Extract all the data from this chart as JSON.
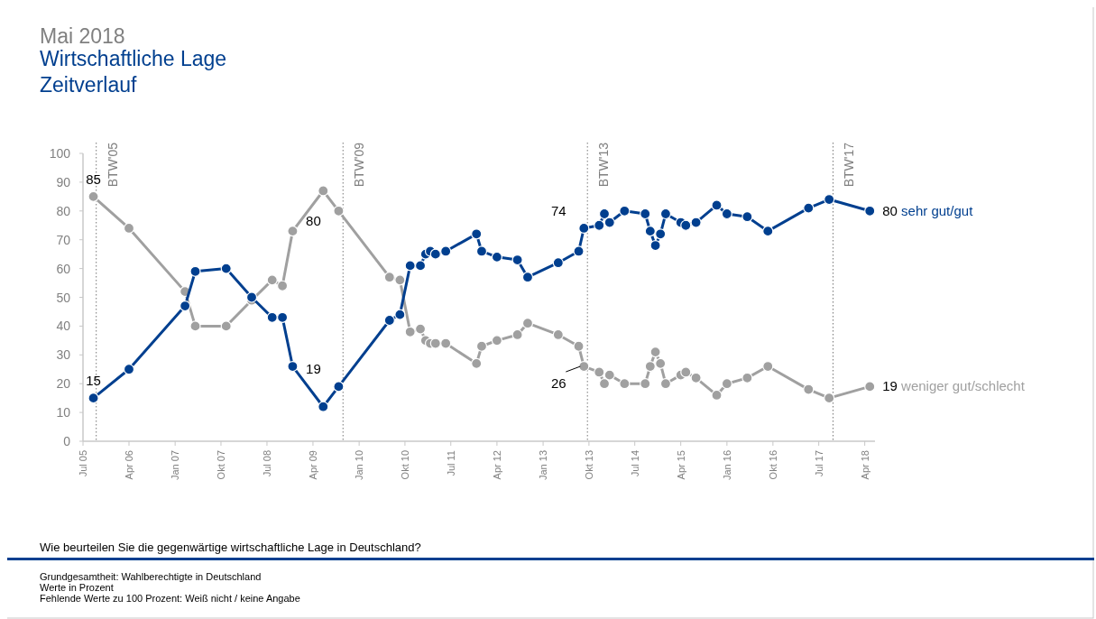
{
  "chart_data": {
    "type": "line",
    "title": "Mai 2018",
    "subtitle": "Wirtschaftliche Lage",
    "annotations": [
      "Zeitverlauf",
      "Wie beurteilen Sie die gegenwärtige wirtschaftliche Lage in Deutschland?",
      "Grundgesamtheit: Wahlberechtigte in Deutschland",
      "Werte in Prozent",
      "Fehlende Werte zu 100 Prozent: Weiß nicht / keine Angabe"
    ],
    "x": [
      "2005-09",
      "2006-04",
      "2007-03",
      "2007-05",
      "2007-11",
      "2008-04",
      "2008-08",
      "2008-10",
      "2008-12",
      "2009-06",
      "2009-09",
      "2010-07",
      "2010-09",
      "2010-11",
      "2011-01",
      "2011-02",
      "2011-03",
      "2011-04",
      "2011-06",
      "2011-12",
      "2012-01",
      "2012-04",
      "2012-08",
      "2012-10",
      "2013-04",
      "2013-08",
      "2013-09",
      "2013-12",
      "2014-01",
      "2014-02",
      "2014-05",
      "2014-09",
      "2014-10",
      "2014-11",
      "2014-12",
      "2015-01",
      "2015-04",
      "2015-05",
      "2015-07",
      "2015-11",
      "2016-01",
      "2016-05",
      "2016-09",
      "2017-05",
      "2017-09",
      "2018-05"
    ],
    "series": [
      {
        "name": "sehr gut/gut",
        "color": "#003f8f",
        "values": [
          15,
          25,
          47,
          59,
          60,
          50,
          43,
          43,
          26,
          12,
          19,
          42,
          44,
          61,
          61,
          65,
          66,
          65,
          66,
          72,
          66,
          64,
          63,
          57,
          62,
          66,
          74,
          75,
          79,
          76,
          80,
          79,
          73,
          68,
          72,
          79,
          76,
          75,
          76,
          82,
          79,
          78,
          73,
          81,
          84,
          80
        ],
        "value_labels": [
          "15",
          null,
          null,
          null,
          null,
          null,
          null,
          null,
          null,
          null,
          "19",
          null,
          null,
          null,
          null,
          null,
          null,
          null,
          null,
          null,
          null,
          null,
          null,
          null,
          null,
          null,
          "74",
          null,
          null,
          null,
          null,
          null,
          null,
          null,
          null,
          null,
          null,
          null,
          null,
          null,
          null,
          null,
          null,
          null,
          null,
          "80"
        ]
      },
      {
        "name": "weniger gut/schlecht",
        "color": "#a0a0a0",
        "values": [
          85,
          74,
          52,
          40,
          40,
          49,
          56,
          54,
          73,
          87,
          80,
          57,
          56,
          38,
          39,
          35,
          34,
          34,
          34,
          27,
          33,
          35,
          37,
          41,
          37,
          33,
          26,
          24,
          20,
          23,
          20,
          20,
          26,
          31,
          27,
          20,
          23,
          24,
          22,
          16,
          20,
          22,
          26,
          18,
          15,
          19
        ],
        "value_labels": [
          "85",
          null,
          null,
          null,
          null,
          null,
          null,
          null,
          null,
          null,
          "80",
          null,
          null,
          null,
          null,
          null,
          null,
          null,
          null,
          null,
          null,
          null,
          null,
          null,
          null,
          null,
          "26",
          null,
          null,
          null,
          null,
          null,
          null,
          null,
          null,
          null,
          null,
          null,
          null,
          null,
          null,
          null,
          null,
          null,
          null,
          "19"
        ]
      }
    ],
    "xlim": [
      "2005-07",
      "2018-06"
    ],
    "xticks": [
      {
        "value": "2005-07",
        "label": "Jul 05"
      },
      {
        "value": "2006-04",
        "label": "Apr 06"
      },
      {
        "value": "2007-01",
        "label": "Jan 07"
      },
      {
        "value": "2007-10",
        "label": "Okt 07"
      },
      {
        "value": "2008-07",
        "label": "Jul 08"
      },
      {
        "value": "2009-04",
        "label": "Apr 09"
      },
      {
        "value": "2010-01",
        "label": "Jan 10"
      },
      {
        "value": "2010-10",
        "label": "Okt 10"
      },
      {
        "value": "2011-07",
        "label": "Jul 11"
      },
      {
        "value": "2012-04",
        "label": "Apr 12"
      },
      {
        "value": "2013-01",
        "label": "Jan 13"
      },
      {
        "value": "2013-10",
        "label": "Okt 13"
      },
      {
        "value": "2014-07",
        "label": "Jul 14"
      },
      {
        "value": "2015-04",
        "label": "Apr 15"
      },
      {
        "value": "2016-01",
        "label": "Jan 16"
      },
      {
        "value": "2016-10",
        "label": "Okt 16"
      },
      {
        "value": "2017-07",
        "label": "Jul 17"
      },
      {
        "value": "2018-04",
        "label": "Apr 18"
      }
    ],
    "ylim": [
      0,
      100
    ],
    "yticks": [
      0,
      10,
      20,
      30,
      40,
      50,
      60,
      70,
      80,
      90,
      100
    ],
    "ref_lines": [
      {
        "axis": "x",
        "value": "2005-09-18",
        "label": "BTW'05",
        "line_style": "dotted"
      },
      {
        "axis": "x",
        "value": "2009-09-27",
        "label": "BTW'09",
        "line_style": "dotted"
      },
      {
        "axis": "x",
        "value": "2013-09-22",
        "label": "BTW'13",
        "line_style": "dotted"
      },
      {
        "axis": "x",
        "value": "2017-09-24",
        "label": "BTW'17",
        "line_style": "dotted"
      }
    ],
    "grid": false,
    "legend": false,
    "marker": "circle",
    "line_style": "solid"
  }
}
